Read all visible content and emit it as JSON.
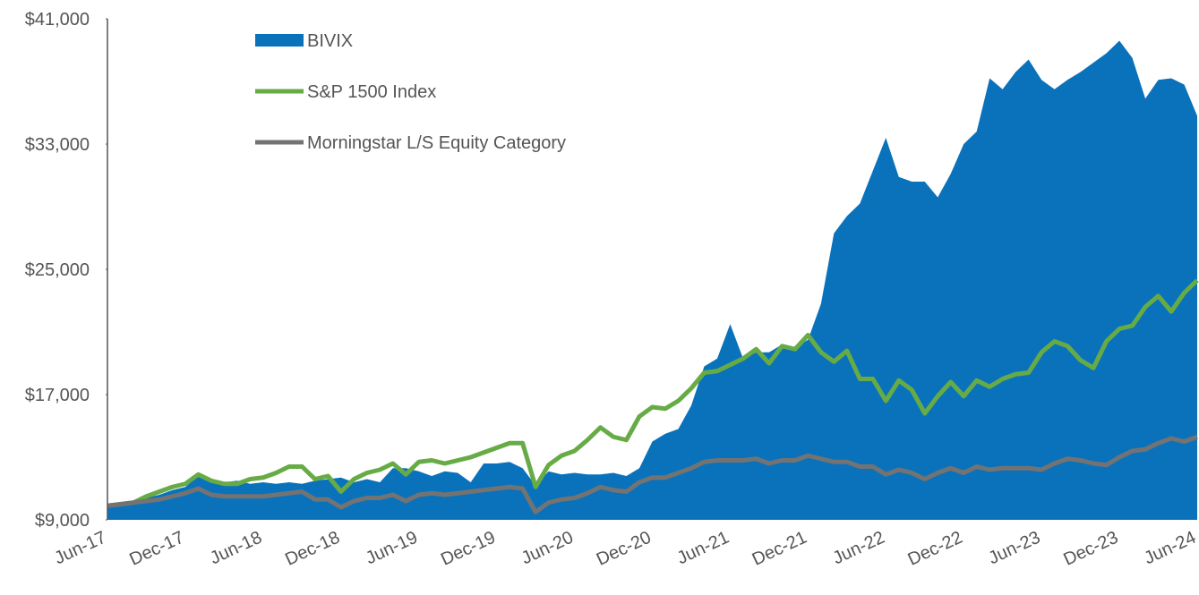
{
  "chart_data": {
    "type": "line",
    "categories": [
      "Jun-17",
      null,
      null,
      null,
      null,
      null,
      "Dec-17",
      null,
      null,
      null,
      null,
      null,
      "Jun-18",
      null,
      null,
      null,
      null,
      null,
      "Dec-18",
      null,
      null,
      null,
      null,
      null,
      "Jun-19",
      null,
      null,
      null,
      null,
      null,
      "Dec-19",
      null,
      null,
      null,
      null,
      null,
      "Jun-20",
      null,
      null,
      null,
      null,
      null,
      "Dec-20",
      null,
      null,
      null,
      null,
      null,
      "Jun-21",
      null,
      null,
      null,
      null,
      null,
      "Dec-21",
      null,
      null,
      null,
      null,
      null,
      "Jun-22",
      null,
      null,
      null,
      null,
      null,
      "Dec-22",
      null,
      null,
      null,
      null,
      null,
      "Jun-23",
      null,
      null,
      null,
      null,
      null,
      "Dec-23",
      null,
      null,
      null,
      null,
      null,
      "Jun-24"
    ],
    "series": [
      {
        "name": "BIVIX",
        "style": "area",
        "color": "#0a72bb",
        "values": [
          9900,
          10100,
          10200,
          10400,
          10600,
          10900,
          11100,
          11800,
          11500,
          11400,
          11500,
          11300,
          11400,
          11300,
          11400,
          11300,
          11500,
          11600,
          11700,
          11400,
          11600,
          11400,
          12300,
          12300,
          12100,
          11800,
          12100,
          12000,
          11400,
          12600,
          12600,
          12700,
          12300,
          11200,
          12100,
          11900,
          12000,
          11900,
          11900,
          12000,
          11800,
          12300,
          14000,
          14500,
          14800,
          16300,
          18800,
          19300,
          21500,
          19300,
          19700,
          19700,
          20200,
          20000,
          20500,
          22800,
          27300,
          28400,
          29200,
          31300,
          33400,
          30900,
          30600,
          30600,
          29600,
          31100,
          33000,
          33800,
          37200,
          36500,
          37600,
          38400,
          37100,
          36500,
          37100,
          37600,
          38200,
          38800,
          39600,
          38500,
          35900,
          37100,
          37200,
          36800,
          34800
        ]
      },
      {
        "name": "S&P 1500 Index",
        "style": "line",
        "color": "#67ab46",
        "values": [
          9900,
          10000,
          10100,
          10500,
          10800,
          11100,
          11300,
          11900,
          11500,
          11300,
          11300,
          11600,
          11700,
          12000,
          12400,
          12400,
          11600,
          11800,
          10800,
          11600,
          12000,
          12200,
          12600,
          11900,
          12700,
          12800,
          12600,
          12800,
          13000,
          13300,
          13600,
          13900,
          13900,
          11100,
          12500,
          13100,
          13400,
          14100,
          14900,
          14300,
          14100,
          15600,
          16200,
          16100,
          16600,
          17400,
          18400,
          18500,
          18900,
          19300,
          19900,
          19000,
          20100,
          19900,
          20800,
          19700,
          19100,
          19800,
          18000,
          18000,
          16600,
          17900,
          17300,
          15800,
          16900,
          17800,
          16900,
          17900,
          17500,
          18000,
          18300,
          18400,
          19700,
          20400,
          20100,
          19200,
          18700,
          20400,
          21200,
          21400,
          22600,
          23300,
          22300,
          23500,
          24300
        ]
      },
      {
        "name": "Morningstar L/S Equity Category",
        "style": "line",
        "color": "#737373",
        "values": [
          9900,
          10000,
          10100,
          10200,
          10300,
          10500,
          10700,
          11000,
          10600,
          10500,
          10500,
          10500,
          10500,
          10600,
          10700,
          10800,
          10300,
          10300,
          9800,
          10200,
          10400,
          10400,
          10600,
          10200,
          10600,
          10700,
          10600,
          10700,
          10800,
          10900,
          11000,
          11100,
          11000,
          9500,
          10100,
          10300,
          10400,
          10700,
          11100,
          10900,
          10800,
          11400,
          11700,
          11700,
          12000,
          12300,
          12700,
          12800,
          12800,
          12800,
          12900,
          12600,
          12800,
          12800,
          13100,
          12900,
          12700,
          12700,
          12400,
          12400,
          11900,
          12200,
          12000,
          11600,
          12000,
          12300,
          12000,
          12400,
          12200,
          12300,
          12300,
          12300,
          12200,
          12600,
          12900,
          12800,
          12600,
          12500,
          13000,
          13400,
          13500,
          13900,
          14200,
          14000,
          14300
        ]
      }
    ],
    "ylim": [
      9000,
      41000
    ],
    "yticks": [
      {
        "value": 9000,
        "label": "$9,000"
      },
      {
        "value": 17000,
        "label": "$17,000"
      },
      {
        "value": 25000,
        "label": "$25,000"
      },
      {
        "value": 33000,
        "label": "$33,000"
      },
      {
        "value": 41000,
        "label": "$41,000"
      }
    ],
    "grid": false
  }
}
